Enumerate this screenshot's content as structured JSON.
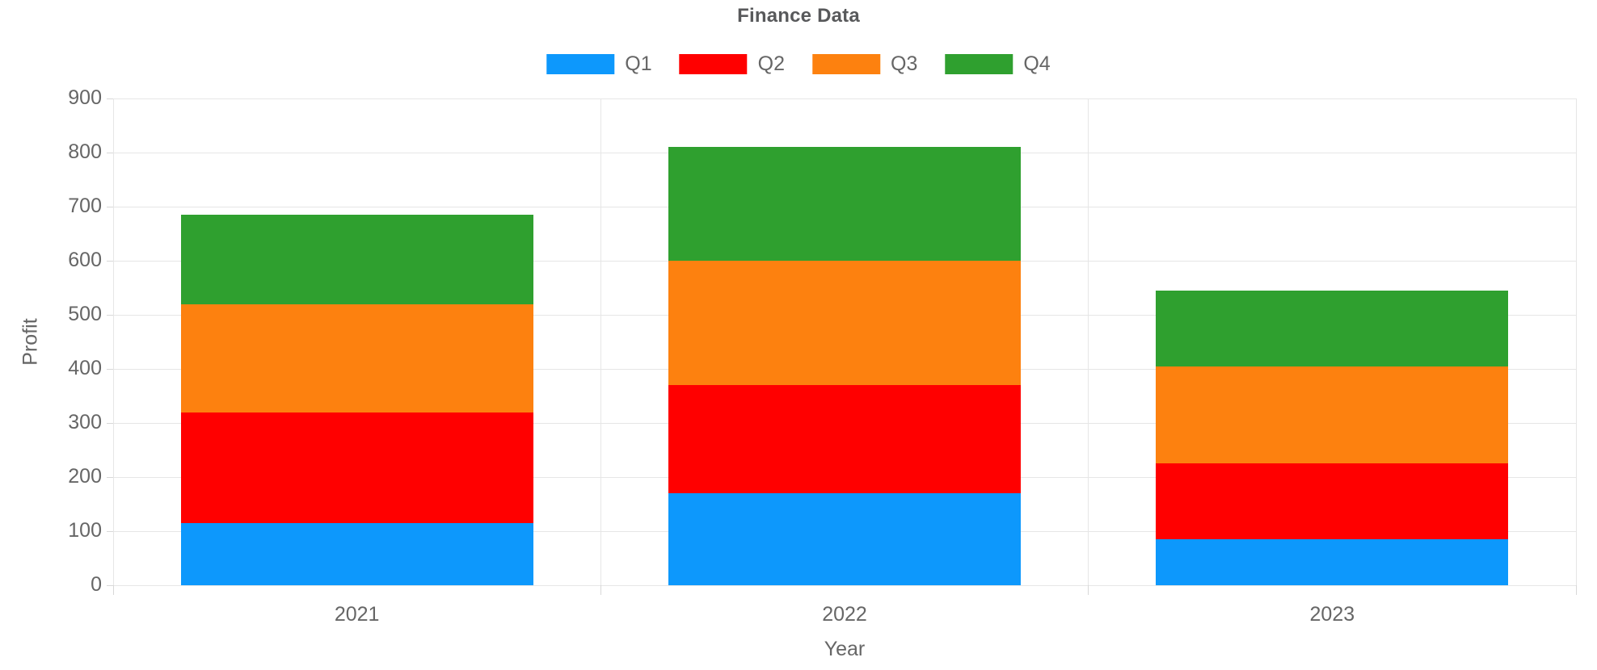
{
  "title": "Finance Data",
  "axes": {
    "x_title": "Year",
    "y_title": "Profit"
  },
  "chart_data": {
    "type": "bar",
    "stacked": true,
    "title": "Finance Data",
    "xlabel": "Year",
    "ylabel": "Profit",
    "categories": [
      "2021",
      "2022",
      "2023"
    ],
    "series": [
      {
        "name": "Q1",
        "color": "#0d98fc",
        "values": [
          115,
          170,
          85
        ]
      },
      {
        "name": "Q2",
        "color": "#ff0000",
        "values": [
          205,
          200,
          140
        ]
      },
      {
        "name": "Q3",
        "color": "#fd810f",
        "values": [
          200,
          230,
          180
        ]
      },
      {
        "name": "Q4",
        "color": "#2fa02f",
        "values": [
          165,
          210,
          140
        ]
      }
    ],
    "stack_totals": [
      685,
      810,
      545
    ],
    "ylim": [
      0,
      900
    ],
    "y_tick_step": 100,
    "y_tick_labels": [
      "0",
      "100",
      "200",
      "300",
      "400",
      "500",
      "600",
      "700",
      "800",
      "900"
    ],
    "grid": true,
    "legend_position": "top"
  },
  "colors": {
    "title_text": "#58595b",
    "axis_text": "#666666",
    "gridline": "#e6e6e6",
    "axis_line": "#d8d8d8",
    "background": "#ffffff"
  }
}
